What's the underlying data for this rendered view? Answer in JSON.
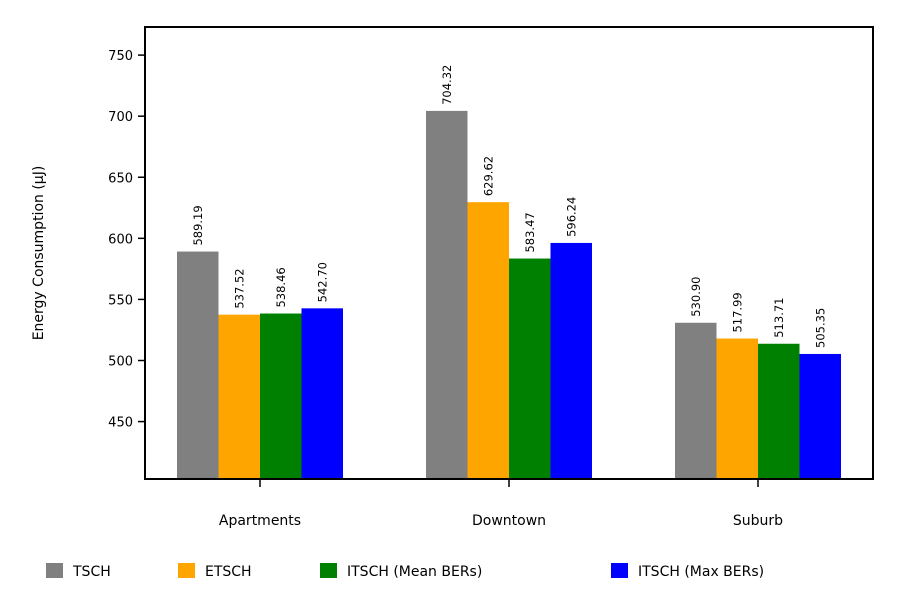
{
  "chart_data": {
    "type": "bar",
    "title": "",
    "xlabel": "",
    "ylabel": "Energy Consumption (μJ)",
    "ylim": [
      403,
      773
    ],
    "yticks": [
      450,
      500,
      550,
      600,
      650,
      700,
      750
    ],
    "categories": [
      "Apartments",
      "Downtown",
      "Suburb"
    ],
    "series": [
      {
        "name": "TSCH",
        "color": "#808080",
        "values": [
          589.19,
          704.32,
          530.9
        ],
        "labels": [
          "589.19",
          "704.32",
          "530.90"
        ]
      },
      {
        "name": "ETSCH",
        "color": "#FFA500",
        "values": [
          537.52,
          629.62,
          517.99
        ],
        "labels": [
          "537.52",
          "629.62",
          "517.99"
        ]
      },
      {
        "name": "ITSCH (Mean BERs)",
        "color": "#008000",
        "values": [
          538.46,
          583.47,
          513.71
        ],
        "labels": [
          "538.46",
          "583.47",
          "513.71"
        ]
      },
      {
        "name": "ITSCH (Max BERs)",
        "color": "#0000FF",
        "values": [
          542.7,
          596.24,
          505.35
        ],
        "labels": [
          "542.70",
          "596.24",
          "505.35"
        ]
      }
    ],
    "grid": false,
    "legend_position": "bottom"
  }
}
